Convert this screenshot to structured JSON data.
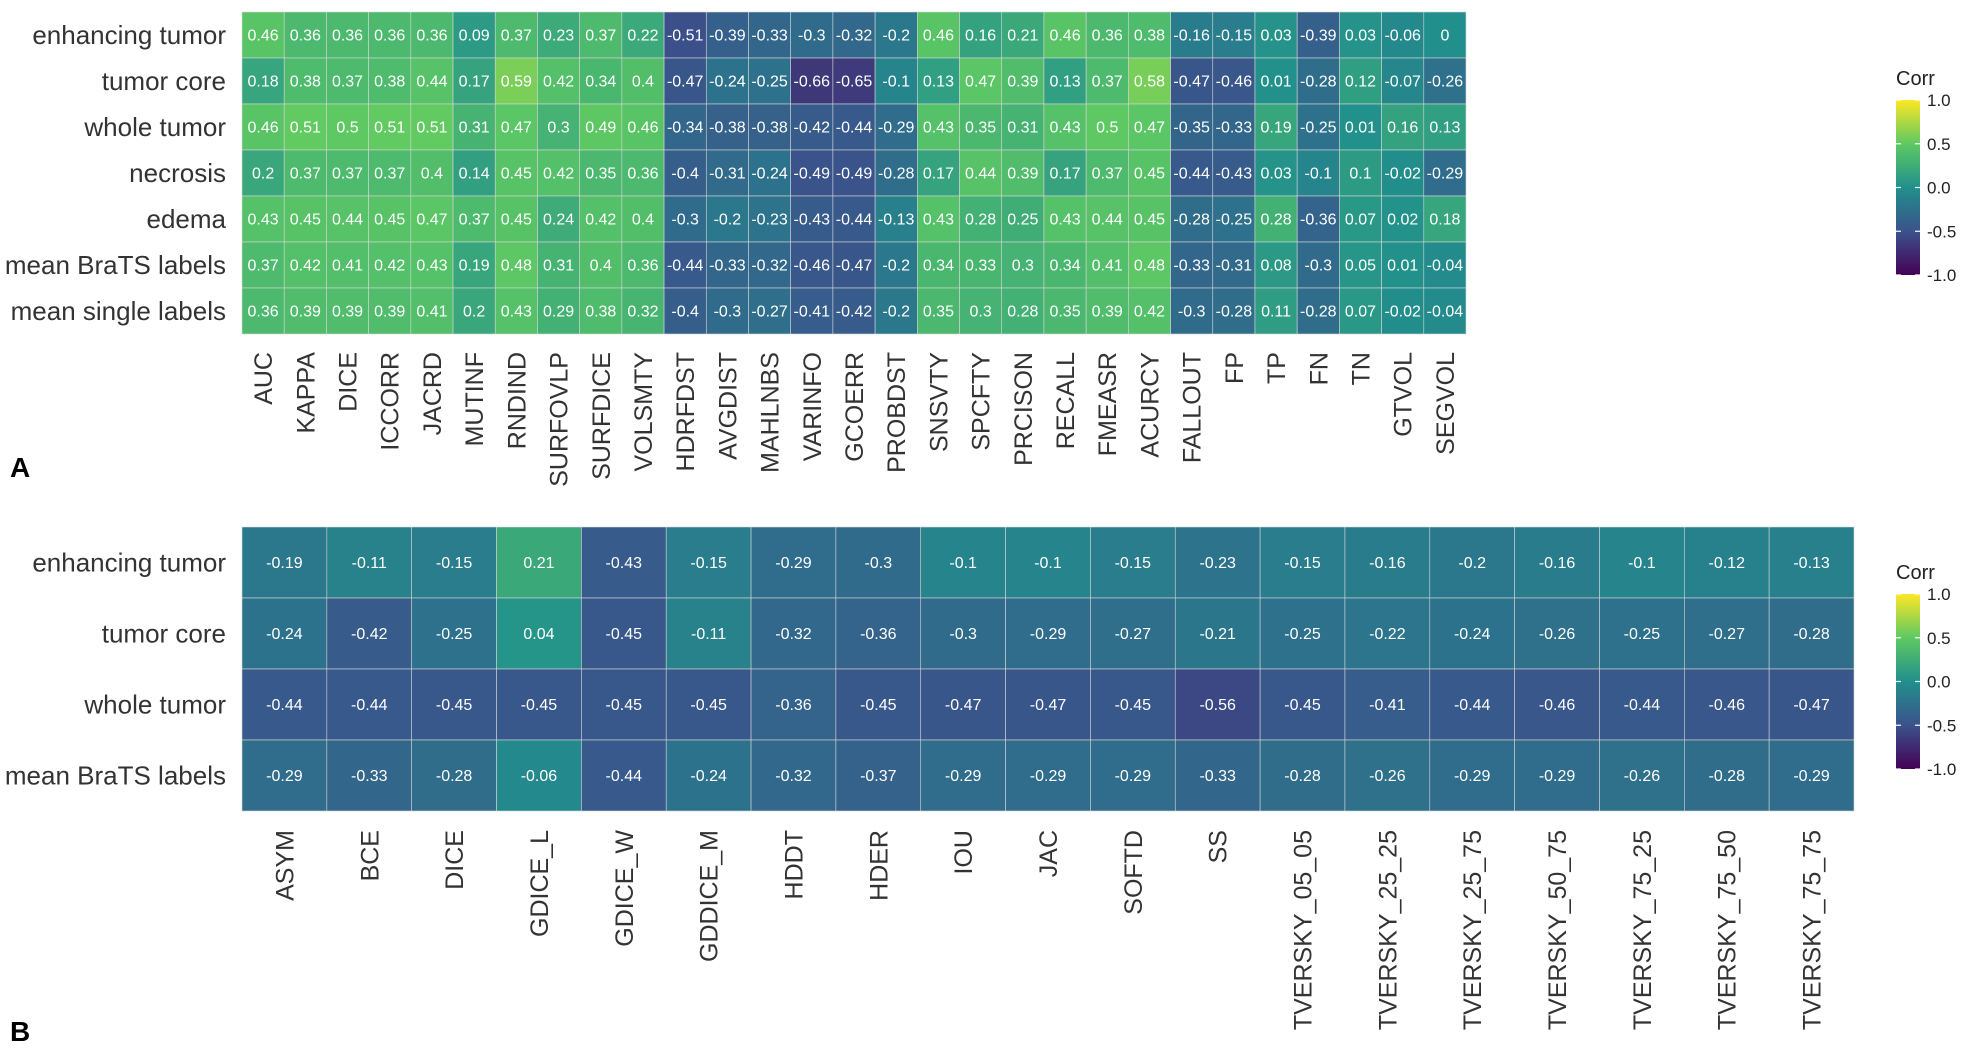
{
  "chart_data": [
    {
      "type": "heatmap",
      "panel_label": "A",
      "legend_title": "Corr",
      "legend_ticks": [
        "1.0",
        "0.5",
        "0.0",
        "-0.5",
        "-1.0"
      ],
      "zlim": [
        -1,
        1
      ],
      "colorscale": [
        "#440154",
        "#3b528b",
        "#21908c",
        "#5ec962",
        "#fde725"
      ],
      "rows": [
        "enhancing tumor",
        "tumor core",
        "whole tumor",
        "necrosis",
        "edema",
        "mean BraTS labels",
        "mean single labels"
      ],
      "columns": [
        "AUC",
        "KAPPA",
        "DICE",
        "ICCORR",
        "JACRD",
        "MUTINF",
        "RNDIND",
        "SURFOVLP",
        "SURFDICE",
        "VOLSMTY",
        "HDRFDST",
        "AVGDIST",
        "MAHLNBS",
        "VARINFO",
        "GCOERR",
        "PROBDST",
        "SNSVTY",
        "SPCFTY",
        "PRCISON",
        "RECALL",
        "FMEASR",
        "ACURCY",
        "FALLOUT",
        "FP",
        "TP",
        "FN",
        "TN",
        "GTVOL",
        "SEGVOL"
      ],
      "values": [
        [
          "0.46",
          "0.36",
          "0.36",
          "0.36",
          "0.36",
          "0.09",
          "0.37",
          "0.23",
          "0.37",
          "0.22",
          "-0.51",
          "-0.39",
          "-0.33",
          "-0.3",
          "-0.32",
          "-0.2",
          "0.46",
          "0.16",
          "0.21",
          "0.46",
          "0.36",
          "0.38",
          "-0.16",
          "-0.15",
          "0.03",
          "-0.39",
          "0.03",
          "-0.06",
          "0"
        ],
        [
          "0.18",
          "0.38",
          "0.37",
          "0.38",
          "0.44",
          "0.17",
          "0.59",
          "0.42",
          "0.34",
          "0.4",
          "-0.47",
          "-0.24",
          "-0.25",
          "-0.66",
          "-0.65",
          "-0.1",
          "0.13",
          "0.47",
          "0.39",
          "0.13",
          "0.37",
          "0.58",
          "-0.47",
          "-0.46",
          "0.01",
          "-0.28",
          "0.12",
          "-0.07",
          "-0.26"
        ],
        [
          "0.46",
          "0.51",
          "0.5",
          "0.51",
          "0.51",
          "0.31",
          "0.47",
          "0.3",
          "0.49",
          "0.46",
          "-0.34",
          "-0.38",
          "-0.38",
          "-0.42",
          "-0.44",
          "-0.29",
          "0.43",
          "0.35",
          "0.31",
          "0.43",
          "0.5",
          "0.47",
          "-0.35",
          "-0.33",
          "0.19",
          "-0.25",
          "0.01",
          "0.16",
          "0.13"
        ],
        [
          "0.2",
          "0.37",
          "0.37",
          "0.37",
          "0.4",
          "0.14",
          "0.45",
          "0.42",
          "0.35",
          "0.36",
          "-0.4",
          "-0.31",
          "-0.24",
          "-0.49",
          "-0.49",
          "-0.28",
          "0.17",
          "0.44",
          "0.39",
          "0.17",
          "0.37",
          "0.45",
          "-0.44",
          "-0.43",
          "0.03",
          "-0.1",
          "0.1",
          "-0.02",
          "-0.29"
        ],
        [
          "0.43",
          "0.45",
          "0.44",
          "0.45",
          "0.47",
          "0.37",
          "0.45",
          "0.24",
          "0.42",
          "0.4",
          "-0.3",
          "-0.2",
          "-0.23",
          "-0.43",
          "-0.44",
          "-0.13",
          "0.43",
          "0.28",
          "0.25",
          "0.43",
          "0.44",
          "0.45",
          "-0.28",
          "-0.25",
          "0.28",
          "-0.36",
          "0.07",
          "0.02",
          "0.18"
        ],
        [
          "0.37",
          "0.42",
          "0.41",
          "0.42",
          "0.43",
          "0.19",
          "0.48",
          "0.31",
          "0.4",
          "0.36",
          "-0.44",
          "-0.33",
          "-0.32",
          "-0.46",
          "-0.47",
          "-0.2",
          "0.34",
          "0.33",
          "0.3",
          "0.34",
          "0.41",
          "0.48",
          "-0.33",
          "-0.31",
          "0.08",
          "-0.3",
          "0.05",
          "0.01",
          "-0.04"
        ],
        [
          "0.36",
          "0.39",
          "0.39",
          "0.39",
          "0.41",
          "0.2",
          "0.43",
          "0.29",
          "0.38",
          "0.32",
          "-0.4",
          "-0.3",
          "-0.27",
          "-0.41",
          "-0.42",
          "-0.2",
          "0.35",
          "0.3",
          "0.28",
          "0.35",
          "0.39",
          "0.42",
          "-0.3",
          "-0.28",
          "0.11",
          "-0.28",
          "0.07",
          "-0.02",
          "-0.04"
        ]
      ]
    },
    {
      "type": "heatmap",
      "panel_label": "B",
      "legend_title": "Corr",
      "legend_ticks": [
        "1.0",
        "0.5",
        "0.0",
        "-0.5",
        "-1.0"
      ],
      "zlim": [
        -1,
        1
      ],
      "colorscale": [
        "#440154",
        "#3b528b",
        "#21908c",
        "#5ec962",
        "#fde725"
      ],
      "rows": [
        "enhancing tumor",
        "tumor core",
        "whole tumor",
        "mean BraTS labels"
      ],
      "columns": [
        "ASYM",
        "BCE",
        "DICE",
        "GDICE_L",
        "GDICE_W",
        "GDDICE_M",
        "HDDT",
        "HDER",
        "IOU",
        "JAC",
        "SOFTD",
        "SS",
        "TVERSKY_05_05",
        "TVERSKY_25_25",
        "TVERSKY_25_75",
        "TVERSKY_50_75",
        "TVERSKY_75_25",
        "TVERSKY_75_50",
        "TVERSKY_75_75"
      ],
      "values": [
        [
          "-0.19",
          "-0.11",
          "-0.15",
          "0.21",
          "-0.43",
          "-0.15",
          "-0.29",
          "-0.3",
          "-0.1",
          "-0.1",
          "-0.15",
          "-0.23",
          "-0.15",
          "-0.16",
          "-0.2",
          "-0.16",
          "-0.1",
          "-0.12",
          "-0.13"
        ],
        [
          "-0.24",
          "-0.42",
          "-0.25",
          "0.04",
          "-0.45",
          "-0.11",
          "-0.32",
          "-0.36",
          "-0.3",
          "-0.29",
          "-0.27",
          "-0.21",
          "-0.25",
          "-0.22",
          "-0.24",
          "-0.26",
          "-0.25",
          "-0.27",
          "-0.28"
        ],
        [
          "-0.44",
          "-0.44",
          "-0.45",
          "-0.45",
          "-0.45",
          "-0.45",
          "-0.36",
          "-0.45",
          "-0.47",
          "-0.47",
          "-0.45",
          "-0.56",
          "-0.45",
          "-0.41",
          "-0.44",
          "-0.46",
          "-0.44",
          "-0.46",
          "-0.47"
        ],
        [
          "-0.29",
          "-0.33",
          "-0.28",
          "-0.06",
          "-0.44",
          "-0.24",
          "-0.32",
          "-0.37",
          "-0.29",
          "-0.29",
          "-0.29",
          "-0.33",
          "-0.28",
          "-0.26",
          "-0.29",
          "-0.29",
          "-0.26",
          "-0.28",
          "-0.29"
        ]
      ]
    }
  ]
}
